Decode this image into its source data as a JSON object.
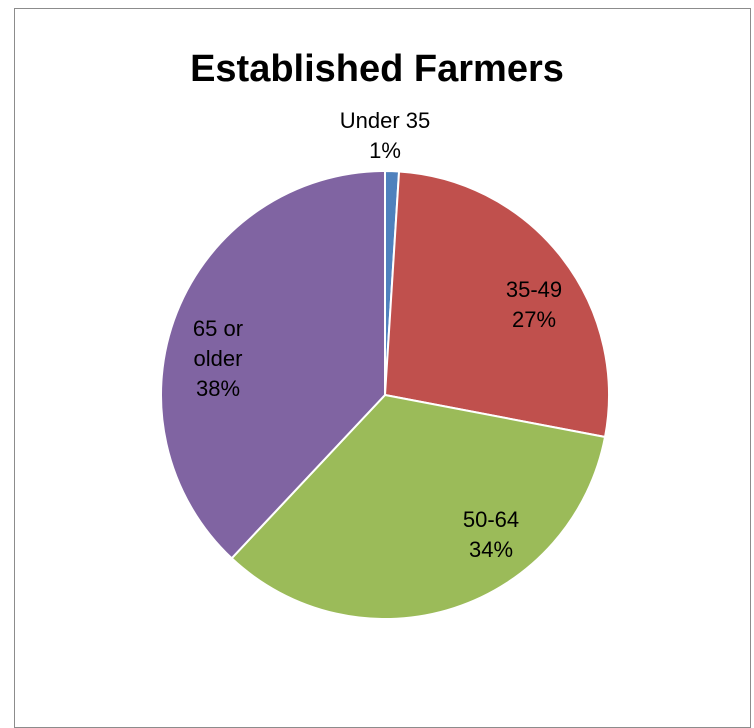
{
  "chart_data": {
    "type": "pie",
    "title": "Established Farmers",
    "slices": [
      {
        "label": "Under 35",
        "label_lines": [
          "Under 35"
        ],
        "value": 1,
        "pct_label": "1%",
        "color": "#4F81BD"
      },
      {
        "label": "35-49",
        "label_lines": [
          "35-49"
        ],
        "value": 27,
        "pct_label": "27%",
        "color": "#C0504D"
      },
      {
        "label": "50-64",
        "label_lines": [
          "50-64"
        ],
        "value": 34,
        "pct_label": "34%",
        "color": "#9BBB59"
      },
      {
        "label": "65 or older",
        "label_lines": [
          "65 or",
          "older"
        ],
        "value": 38,
        "pct_label": "38%",
        "color": "#8064A2"
      }
    ],
    "legend": "none"
  }
}
